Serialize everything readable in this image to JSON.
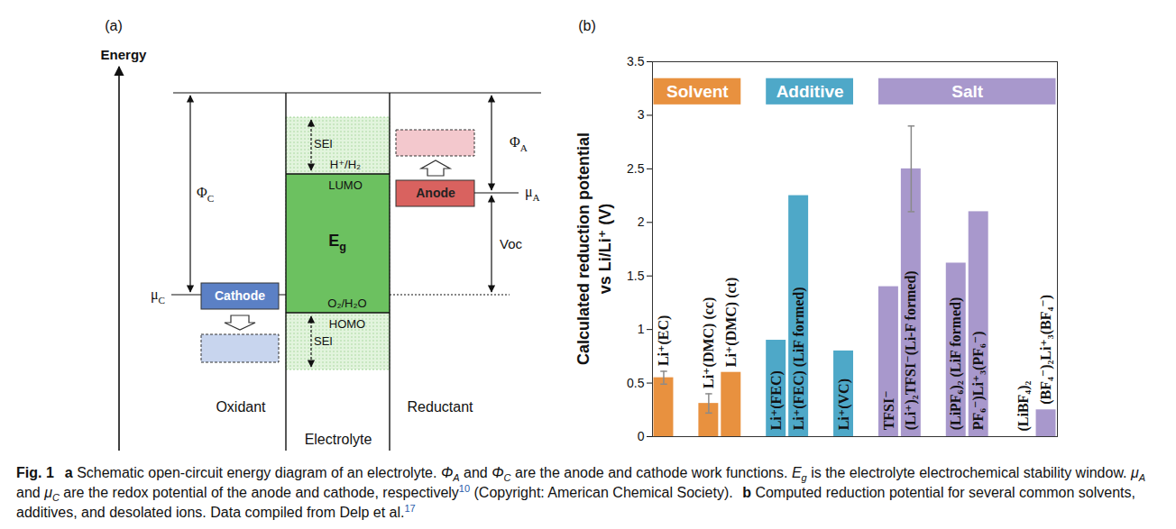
{
  "diagram": {
    "panel_label": "(a)",
    "axis_label": "Energy",
    "phi_c": {
      "text": "Φ",
      "sub": "C"
    },
    "mu_c": {
      "text": "μ",
      "sub": "C"
    },
    "cathode": "Cathode",
    "sei_top": "SEI",
    "sei_bottom": "SEI",
    "h_level": "H⁺/H₂",
    "lumo": "LUMO",
    "eg": {
      "text": "E",
      "sub": "g"
    },
    "o_level": "O₂/H₂O",
    "homo": "HOMO",
    "anode": "Anode",
    "phi_a": {
      "text": "Φ",
      "sub": "A"
    },
    "mu_a": {
      "text": "μ",
      "sub": "A"
    },
    "voc": "Voc",
    "oxidant": "Oxidant",
    "electrolyte": "Electrolyte",
    "reductant": "Reductant"
  },
  "chart_data": {
    "type": "bar",
    "title": "(b)",
    "y_label": "Calculated reduction potential\nvs Li/Li⁺ (V)",
    "categories": [
      "Li⁺(EC)",
      null,
      "Li⁺(DMC) (cc)",
      "Li⁺(DMC) (ct)",
      null,
      "Li⁺(FEC)",
      "Li⁺(FEC) (LiF formed)",
      null,
      "Li⁺(VC)",
      null,
      "TFSI⁻",
      "(Li⁺)₂TFSI⁻(Li-F formed)",
      null,
      "(LiPF₆)₂ (LiF formed)",
      "PF₆⁻)Li⁺₃(PF₆⁻)",
      null,
      "(LiBF₄)₂",
      "(BF₄⁻)₂Li⁺₃(BF₄⁻)"
    ],
    "series": [
      {
        "name": "Solvent",
        "color": "#e8913f",
        "values": [
          0.55,
          null,
          0.31,
          0.6,
          null,
          null,
          null,
          null,
          null,
          null,
          null,
          null,
          null,
          null,
          null,
          null,
          null,
          null
        ],
        "errors": [
          0.06,
          null,
          0.09,
          null,
          null,
          null,
          null,
          null,
          null,
          null,
          null,
          null,
          null,
          null,
          null,
          null,
          null,
          null
        ]
      },
      {
        "name": "Additive",
        "color": "#4ea8c8",
        "values": [
          null,
          null,
          null,
          null,
          null,
          0.9,
          2.25,
          null,
          0.8,
          null,
          null,
          null,
          null,
          null,
          null,
          null,
          null,
          null
        ],
        "errors": [
          null,
          null,
          null,
          null,
          null,
          null,
          null,
          null,
          null,
          null,
          null,
          null,
          null,
          null,
          null,
          null,
          null,
          null
        ]
      },
      {
        "name": "Salt",
        "color": "#a898cc",
        "values": [
          null,
          null,
          null,
          null,
          null,
          null,
          null,
          null,
          null,
          null,
          1.4,
          2.5,
          null,
          1.62,
          2.1,
          null,
          0,
          0.25
        ],
        "errors": [
          null,
          null,
          null,
          null,
          null,
          null,
          null,
          null,
          null,
          null,
          null,
          0.4,
          null,
          null,
          null,
          null,
          null,
          null
        ]
      }
    ],
    "ylim": [
      0,
      3.5
    ],
    "yticks": [
      0,
      0.5,
      1,
      1.5,
      2,
      2.5,
      3,
      3.5
    ],
    "grid": false,
    "legend": "top",
    "tick_labels": "y"
  },
  "caption": [
    {
      "text": "Fig. 1",
      "bold": true
    },
    {
      "text": "a",
      "bold": true
    },
    {
      "text": " Schematic open-circuit energy diagram of an electrolyte. "
    },
    {
      "text": "Φ",
      "italic": true
    },
    {
      "text": "A",
      "italic": true,
      "sub": true
    },
    {
      "text": " and "
    },
    {
      "text": "Φ",
      "italic": true
    },
    {
      "text": "C",
      "italic": true,
      "sub": true
    },
    {
      "text": " are the anode and cathode work functions. "
    },
    {
      "text": "E",
      "italic": true
    },
    {
      "text": "g",
      "italic": true,
      "sub": true
    },
    {
      "text": " is the electrolyte electrochemical stability window. "
    },
    {
      "text": "μ",
      "italic": true
    },
    {
      "text": "A",
      "italic": true,
      "sub": true
    },
    {
      "text": " and "
    },
    {
      "text": "μ",
      "italic": true
    },
    {
      "text": "C",
      "italic": true,
      "sub": true
    },
    {
      "text": " are the redox potential of the anode and cathode, respectively"
    },
    {
      "text": "10",
      "sup": true
    },
    {
      "text": " (Copyright: American Chemical Society). "
    },
    {
      "text": "b",
      "bold": true
    },
    {
      "text": " Computed reduction potential for several common solvents, additives, and desolated ions. Data compiled from Delp et al."
    },
    {
      "text": "17",
      "sup": true
    }
  ]
}
